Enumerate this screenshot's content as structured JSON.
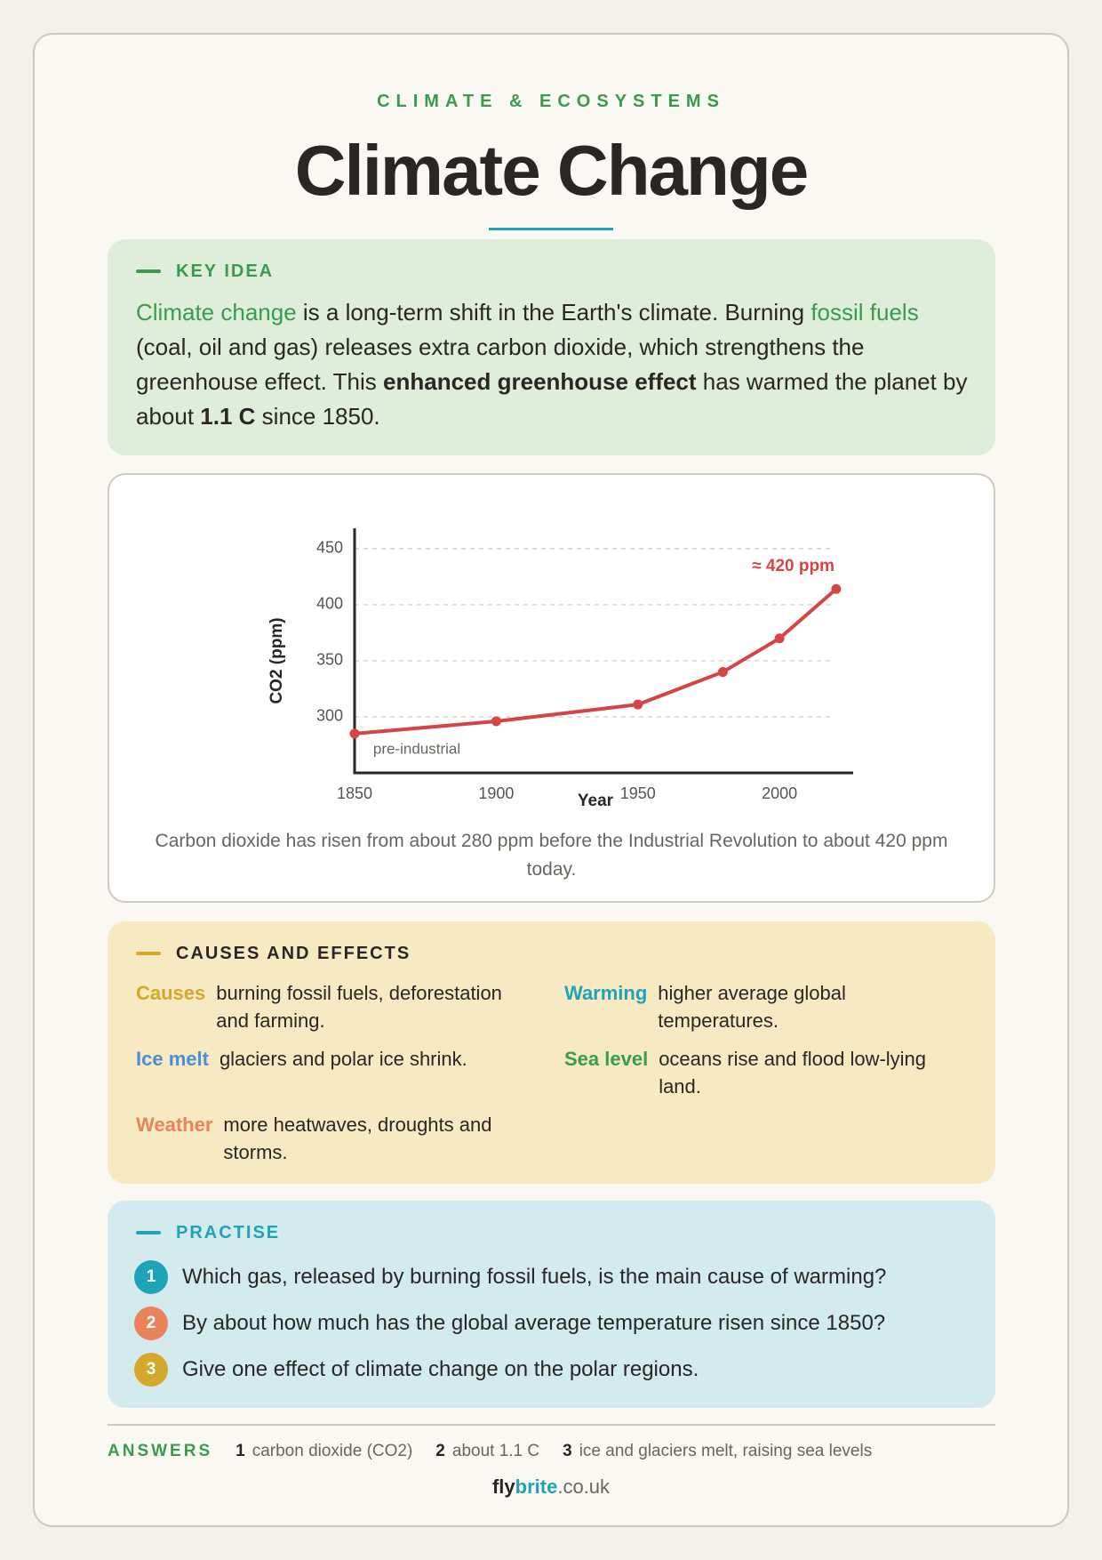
{
  "header": {
    "kicker": "CLIMATE & ECOSYSTEMS",
    "title": "Climate Change"
  },
  "key_idea": {
    "label": "KEY IDEA",
    "body": [
      "Climate change",
      " is a long-term shift in the Earth's climate. Burning ",
      "fossil fuels",
      " (coal, oil and gas) releases extra carbon dioxide, which strengthens the greenhouse effect. This ",
      "enhanced greenhouse effect",
      " has warmed the planet by about ",
      "1.1 C",
      " since 1850."
    ]
  },
  "chart_data": {
    "type": "line",
    "x": [
      1850,
      1900,
      1950,
      1980,
      2000,
      2020
    ],
    "values": [
      285,
      296,
      311,
      340,
      370,
      414
    ],
    "color": "#d64545",
    "xlabel": "Year",
    "ylabel": "CO2 (ppm)",
    "xlim": [
      1850,
      2026
    ],
    "ylim": [
      250,
      465
    ],
    "xticks": [
      1850,
      1900,
      1950,
      2000
    ],
    "yticks": [
      300,
      350,
      400,
      450
    ],
    "grid": true,
    "annotations": [
      "≈ 420 ppm",
      "pre-industrial"
    ],
    "caption": "Carbon dioxide has risen from about 280 ppm before the Industrial Revolution to about 420 ppm today."
  },
  "causes_effects": {
    "label": "CAUSES AND EFFECTS",
    "items": [
      {
        "term": "Causes",
        "text": "burning fossil fuels, deforestation and farming.",
        "color": "#d4a82a"
      },
      {
        "term": "Warming",
        "text": "higher average global temperatures.",
        "color": "#1ea3b8"
      },
      {
        "term": "Ice melt",
        "text": "glaciers and polar ice shrink.",
        "color": "#4a8fd6"
      },
      {
        "term": "Sea level",
        "text": "oceans rise and flood low-lying land.",
        "color": "#3a9a50"
      },
      {
        "term": "Weather",
        "text": "more heatwaves, droughts and storms.",
        "color": "#e8835a"
      }
    ]
  },
  "practise": {
    "label": "PRACTISE",
    "questions": [
      {
        "number": 1,
        "text": "Which gas, released by burning fossil fuels, is the main cause of warming?",
        "color": "#1ea3b8"
      },
      {
        "number": 2,
        "text": "By about how much has the global average temperature risen since 1850?",
        "color": "#e8835a"
      },
      {
        "number": 3,
        "text": "Give one effect of climate change on the polar regions.",
        "color": "#d4a82a"
      }
    ]
  },
  "answers": {
    "label": "ANSWERS",
    "items": [
      {
        "number": 1,
        "text": "carbon dioxide (CO2)"
      },
      {
        "number": 2,
        "text": "about 1.1 C"
      },
      {
        "number": 3,
        "text": "ice and glaciers melt, raising sea levels"
      }
    ]
  },
  "footer": {
    "brand": [
      "fly",
      "brite",
      ".co.uk"
    ]
  }
}
